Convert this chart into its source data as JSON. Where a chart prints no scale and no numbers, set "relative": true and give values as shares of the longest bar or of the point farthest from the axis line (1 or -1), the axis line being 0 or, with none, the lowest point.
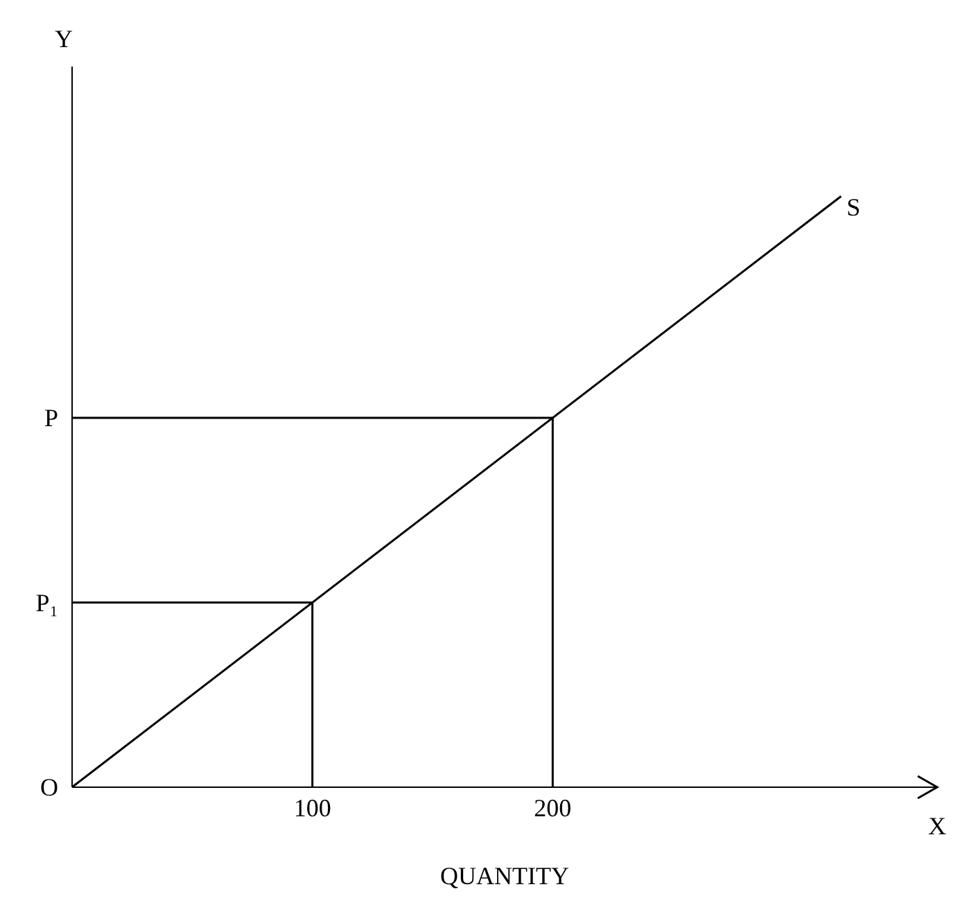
{
  "chart_data": {
    "type": "line",
    "xlabel": "QUANTITY",
    "relative": true,
    "annotations": [
      "O",
      "P₁",
      "P",
      "Y",
      "X"
    ],
    "xlim": [
      0,
      360
    ],
    "xticks": [
      100,
      200
    ],
    "series": [
      {
        "name": "S",
        "color": "#000000",
        "x": [
          0,
          320
        ],
        "values": [
          0,
          1
        ]
      },
      {
        "color": "#000000",
        "x": [
          0,
          100,
          100
        ],
        "values": [
          0.3125,
          0.3125,
          0
        ]
      },
      {
        "color": "#000000",
        "x": [
          0,
          200,
          200
        ],
        "values": [
          0.625,
          0.625,
          0
        ]
      }
    ],
    "grid": false,
    "legend": false,
    "marker": "none",
    "line_style": "solid"
  }
}
